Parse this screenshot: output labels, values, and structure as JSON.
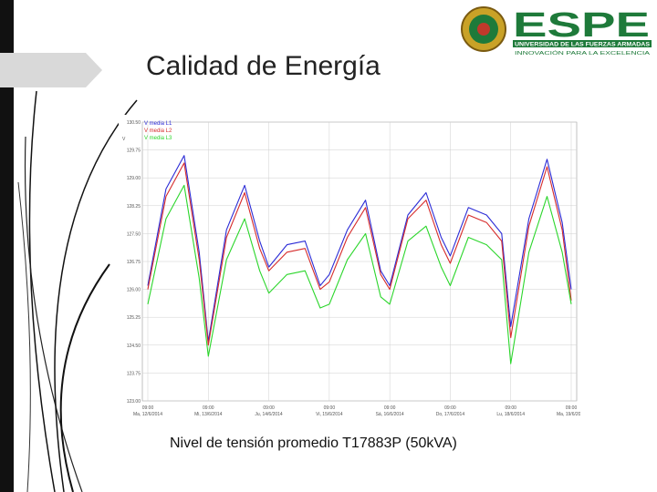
{
  "slide": {
    "title": "Calidad de Energía",
    "caption": "Nivel de tensión promedio T17883P (50kVA)"
  },
  "logo": {
    "name": "ESPE",
    "line1": "UNIVERSIDAD DE LAS FUERZAS ARMADAS",
    "line2": "INNOVACIÓN PARA LA EXCELENCIA",
    "colors": {
      "green": "#1e7a3a",
      "gold": "#c9a227"
    }
  },
  "chart_data": {
    "type": "line",
    "ylabel": "V",
    "ylim": [
      123.0,
      130.5
    ],
    "yticks": [
      "123.00",
      "123.75",
      "124.50",
      "125.25",
      "126.00",
      "126.75",
      "127.50",
      "128.25",
      "129.00",
      "129.75",
      "130.50"
    ],
    "xticks": [
      {
        "time": "09:00",
        "date": "Ma, 12/6/2014"
      },
      {
        "time": "09:00",
        "date": "Mi, 13/6/2014"
      },
      {
        "time": "09:00",
        "date": "Ju, 14/6/2014"
      },
      {
        "time": "09:00",
        "date": "Vi, 15/6/2014"
      },
      {
        "time": "09:00",
        "date": "Sá, 16/6/2014"
      },
      {
        "time": "09:00",
        "date": "Do, 17/6/2014"
      },
      {
        "time": "09:00",
        "date": "Lu, 18/6/2014"
      },
      {
        "time": "09:00",
        "date": "Ma, 19/6/2014"
      }
    ],
    "grid": true,
    "legend": "top-left",
    "x_days": [
      0,
      0.3,
      0.6,
      0.85,
      1.0,
      1.3,
      1.6,
      1.85,
      2.0,
      2.3,
      2.6,
      2.85,
      3.0,
      3.3,
      3.6,
      3.85,
      4.0,
      4.3,
      4.6,
      4.85,
      5.0,
      5.3,
      5.6,
      5.85,
      6.0,
      6.3,
      6.6,
      6.85,
      7.0
    ],
    "series": [
      {
        "name": "V media L1",
        "color": "#2b2bd6",
        "values": [
          126.1,
          128.7,
          129.6,
          127.0,
          124.6,
          127.6,
          128.8,
          127.3,
          126.6,
          127.2,
          127.3,
          126.1,
          126.4,
          127.6,
          128.4,
          126.5,
          126.1,
          128.0,
          128.6,
          127.4,
          126.9,
          128.2,
          128.0,
          127.5,
          125.0,
          127.9,
          129.5,
          127.8,
          126.0
        ]
      },
      {
        "name": "V media L2",
        "color": "#d62b2b",
        "values": [
          126.0,
          128.5,
          129.4,
          126.8,
          124.5,
          127.4,
          128.6,
          127.1,
          126.5,
          127.0,
          127.1,
          126.0,
          126.2,
          127.4,
          128.2,
          126.4,
          126.0,
          127.9,
          128.4,
          127.2,
          126.7,
          128.0,
          127.8,
          127.3,
          124.7,
          127.7,
          129.3,
          127.6,
          125.7
        ]
      },
      {
        "name": "V media L3",
        "color": "#2bd62b",
        "values": [
          125.6,
          127.9,
          128.8,
          126.3,
          124.2,
          126.8,
          127.9,
          126.5,
          125.9,
          126.4,
          126.5,
          125.5,
          125.6,
          126.8,
          127.5,
          125.8,
          125.6,
          127.3,
          127.7,
          126.6,
          126.1,
          127.4,
          127.2,
          126.8,
          124.0,
          127.0,
          128.5,
          127.0,
          125.6
        ]
      }
    ]
  }
}
